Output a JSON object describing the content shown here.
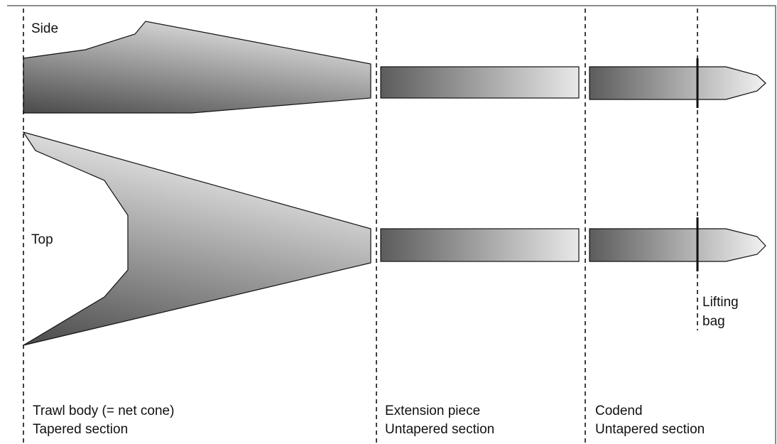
{
  "views": {
    "side": "Side",
    "top": "Top"
  },
  "callouts": {
    "lifting_bag_line1": "Lifting",
    "lifting_bag_line2": "bag"
  },
  "sections": [
    {
      "name": "Trawl body (= net cone)",
      "type": "Tapered section"
    },
    {
      "name": "Extension piece",
      "type": "Untapered section"
    },
    {
      "name": "Codend",
      "type": "Untapered section"
    }
  ],
  "colors": {
    "outline": "#111111",
    "shade_dark": "#5a5a5a",
    "shade_light": "#e6e6e6",
    "background": "#ffffff"
  }
}
